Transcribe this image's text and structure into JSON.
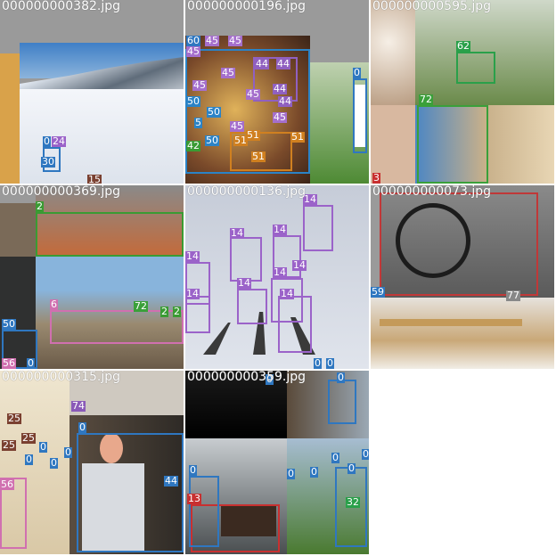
{
  "tiles": [
    {
      "filename": "000000000382.jpg",
      "labels": [
        "0",
        "24",
        "30",
        "15"
      ]
    },
    {
      "filename": "000000000196.jpg",
      "labels": [
        "60",
        "45",
        "45",
        "45",
        "44",
        "44",
        "45",
        "45",
        "44",
        "50",
        "50",
        "45",
        "45",
        "44",
        "5",
        "45",
        "51",
        "50",
        "42",
        "51",
        "51",
        "51",
        "0"
      ]
    },
    {
      "filename": "000000000595.jpg",
      "labels": [
        "62",
        "72",
        "3"
      ]
    },
    {
      "filename": "000000000369.jpg",
      "labels": [
        "2",
        "6",
        "72",
        "2",
        "2",
        "50",
        "56",
        "0"
      ]
    },
    {
      "filename": "000000000136.jpg",
      "labels": [
        "14",
        "14",
        "14",
        "14",
        "14",
        "14",
        "14",
        "14",
        "14",
        "0",
        "0"
      ]
    },
    {
      "filename": "000000000073.jpg",
      "labels": [
        "59",
        "77"
      ]
    },
    {
      "filename": "000000000315.jpg",
      "labels": [
        "74",
        "25",
        "25",
        "25",
        "0",
        "0",
        "0",
        "0",
        "56",
        "44",
        "0"
      ]
    },
    {
      "filename": "000000000359.jpg",
      "labels": [
        "0",
        "0",
        "0",
        "0",
        "0",
        "0",
        "0",
        "0",
        "13",
        "32"
      ]
    }
  ]
}
